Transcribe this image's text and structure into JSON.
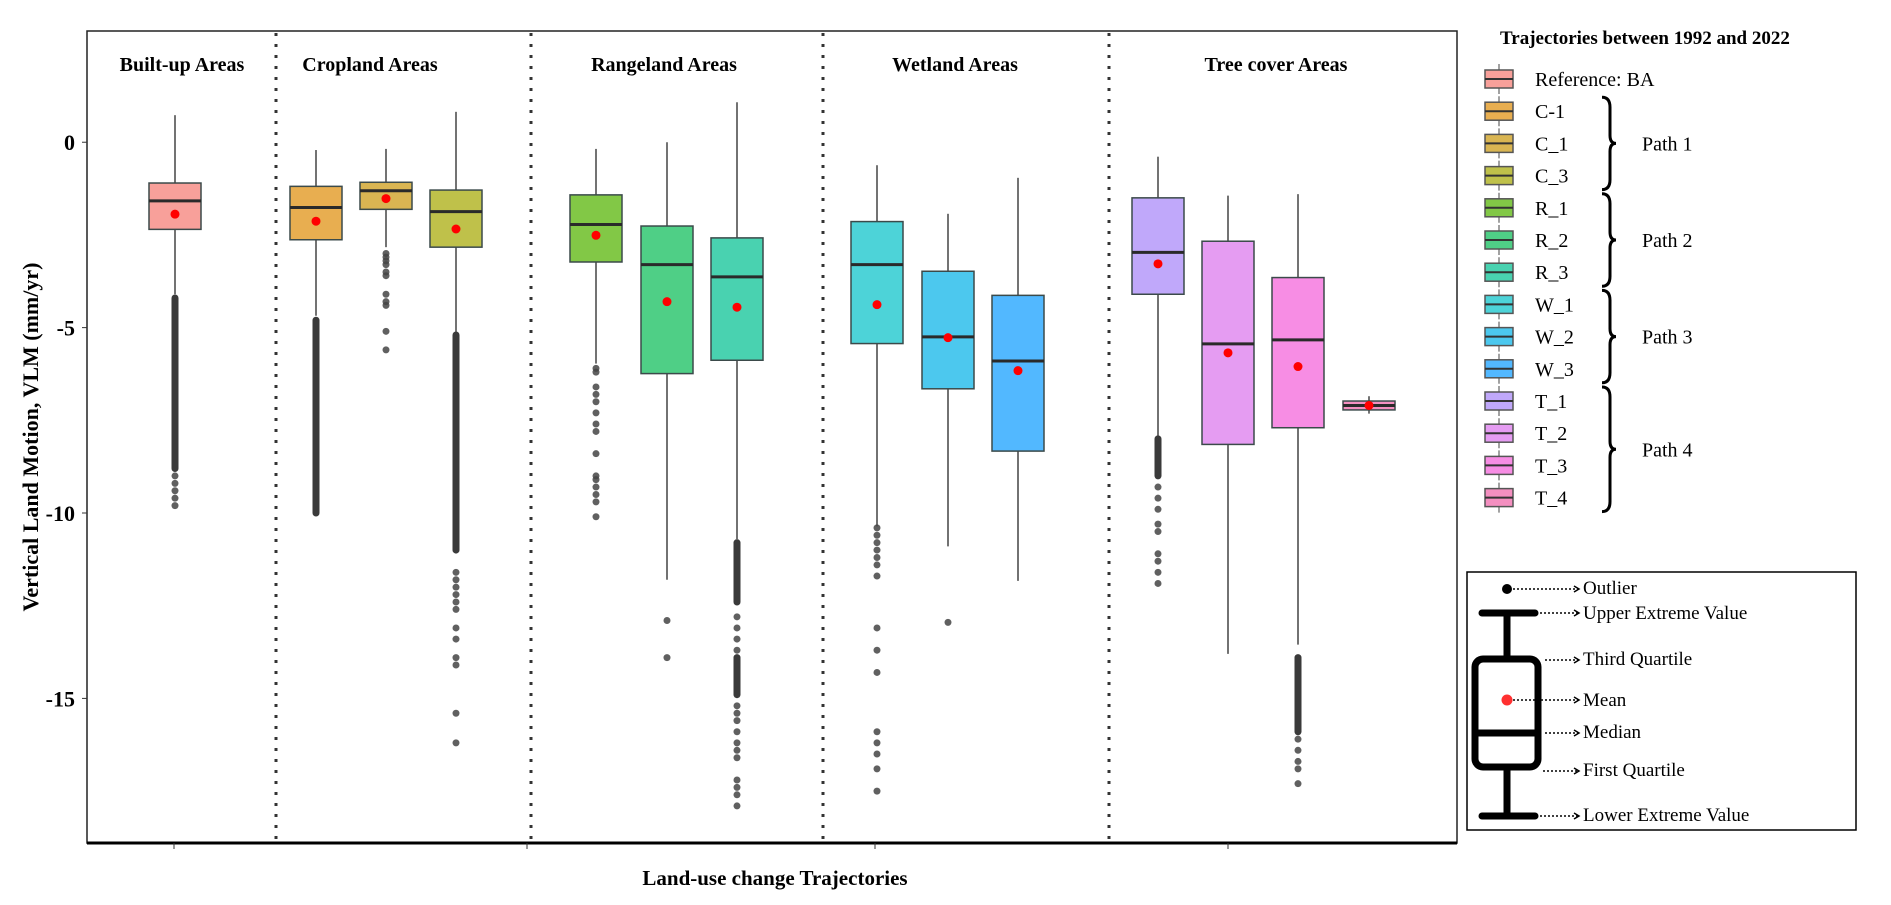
{
  "chart_data": {
    "type": "box",
    "xlabel": "Land-use change Trajectories",
    "ylabel": "Vertical Land Motion, VLM (mm/yr)",
    "ylim": [
      -18.9,
      3.0
    ],
    "yticks": [
      0,
      -5,
      -10,
      -15
    ],
    "grid": false,
    "mean_color": "#ff0000",
    "outlier_color": "#444444",
    "panels": [
      {
        "title": "Built-up Areas",
        "series": [
          "BA"
        ]
      },
      {
        "title": "Cropland  Areas",
        "series": [
          "C-1",
          "C_1",
          "C_3"
        ]
      },
      {
        "title": "Rangeland  Areas",
        "series": [
          "R_1",
          "R_2",
          "R_3"
        ]
      },
      {
        "title": "Wetland  Areas",
        "series": [
          "W_1",
          "W_2",
          "W_3"
        ]
      },
      {
        "title": "Tree cover  Areas",
        "series": [
          "T_1",
          "T_2",
          "T_3",
          "T_4"
        ]
      }
    ],
    "series": [
      {
        "name": "BA",
        "color": "#F8A09A",
        "whisker_high": 0.73,
        "q3": -1.1,
        "median": -1.58,
        "q1": -2.35,
        "whisker_low": -4.1,
        "mean": -1.94,
        "outlier_ranges": [
          [
            -8.8,
            -4.2
          ]
        ],
        "outliers": [
          -9.0,
          -9.2,
          -9.4,
          -9.6,
          -9.8
        ]
      },
      {
        "name": "C-1",
        "color": "#E8AE50",
        "whisker_high": -0.21,
        "q3": -1.19,
        "median": -1.76,
        "q1": -2.63,
        "whisker_low": -4.68,
        "mean": -2.13,
        "outlier_ranges": [
          [
            -10.0,
            -4.8
          ]
        ],
        "outliers": []
      },
      {
        "name": "C_1",
        "color": "#D9B552",
        "whisker_high": -0.18,
        "q3": -1.08,
        "median": -1.31,
        "q1": -1.81,
        "whisker_low": -2.83,
        "mean": -1.52,
        "outlier_ranges": [],
        "outliers": [
          -3.0,
          -3.1,
          -3.2,
          -3.3,
          -3.5,
          -3.6,
          -4.1,
          -4.3,
          -4.4,
          -5.1,
          -5.6
        ]
      },
      {
        "name": "C_3",
        "color": "#BFC14A",
        "whisker_high": 0.82,
        "q3": -1.29,
        "median": -1.87,
        "q1": -2.83,
        "whisker_low": -5.13,
        "mean": -2.34,
        "outlier_ranges": [
          [
            -11.0,
            -5.2
          ]
        ],
        "outliers": [
          -11.6,
          -11.8,
          -12.0,
          -12.2,
          -12.4,
          -12.6,
          -13.1,
          -13.4,
          -13.9,
          -14.1,
          -15.4,
          -16.2
        ]
      },
      {
        "name": "R_1",
        "color": "#82C846",
        "whisker_high": -0.18,
        "q3": -1.42,
        "median": -2.22,
        "q1": -3.23,
        "whisker_low": -5.97,
        "mean": -2.51,
        "outlier_ranges": [],
        "outliers": [
          -6.1,
          -6.2,
          -6.6,
          -6.8,
          -7.0,
          -7.3,
          -7.6,
          -7.8,
          -8.4,
          -9.0,
          -9.1,
          -9.3,
          -9.5,
          -9.7,
          -10.1
        ]
      },
      {
        "name": "R_2",
        "color": "#4FCF86",
        "whisker_high": 0.0,
        "q3": -2.26,
        "median": -3.3,
        "q1": -6.24,
        "whisker_low": -11.8,
        "mean": -4.3,
        "outlier_ranges": [],
        "outliers": [
          -12.9,
          -13.9
        ]
      },
      {
        "name": "R_3",
        "color": "#49D2B0",
        "whisker_high": 1.08,
        "q3": -2.58,
        "median": -3.63,
        "q1": -5.88,
        "whisker_low": -10.7,
        "mean": -4.45,
        "outlier_ranges": [
          [
            -12.4,
            -10.8
          ],
          [
            -14.9,
            -13.9
          ]
        ],
        "outliers": [
          -12.8,
          -13.1,
          -13.4,
          -13.7,
          -15.2,
          -15.4,
          -15.6,
          -15.9,
          -16.2,
          -16.4,
          -16.6,
          -17.2,
          -17.4,
          -17.6,
          -17.9
        ]
      },
      {
        "name": "W_1",
        "color": "#4DD3D8",
        "whisker_high": -0.62,
        "q3": -2.14,
        "median": -3.3,
        "q1": -5.43,
        "whisker_low": -10.36,
        "mean": -4.38,
        "outlier_ranges": [],
        "outliers": [
          -10.4,
          -10.6,
          -10.8,
          -11.0,
          -11.2,
          -11.4,
          -11.7,
          -13.1,
          -13.7,
          -14.3,
          -15.9,
          -16.2,
          -16.5,
          -16.9,
          -17.5
        ]
      },
      {
        "name": "W_2",
        "color": "#4CC8EE",
        "whisker_high": -1.93,
        "q3": -3.48,
        "median": -5.25,
        "q1": -6.65,
        "whisker_low": -10.9,
        "mean": -5.27,
        "outlier_ranges": [],
        "outliers": [
          -12.95
        ]
      },
      {
        "name": "W_3",
        "color": "#52B8FF",
        "whisker_high": -0.96,
        "q3": -4.13,
        "median": -5.9,
        "q1": -8.33,
        "whisker_low": -11.83,
        "mean": -6.16,
        "outlier_ranges": [],
        "outliers": []
      },
      {
        "name": "T_1",
        "color": "#C0A8FA",
        "whisker_high": -0.39,
        "q3": -1.5,
        "median": -2.97,
        "q1": -4.1,
        "whisker_low": -7.96,
        "mean": -3.28,
        "outlier_ranges": [
          [
            -9.0,
            -8.0
          ]
        ],
        "outliers": [
          -9.3,
          -9.6,
          -9.9,
          -10.3,
          -10.5,
          -11.1,
          -11.3,
          -11.6,
          -11.9
        ]
      },
      {
        "name": "T_2",
        "color": "#E59CF2",
        "whisker_high": -1.44,
        "q3": -2.67,
        "median": -5.44,
        "q1": -8.15,
        "whisker_low": -13.8,
        "mean": -5.68,
        "outlier_ranges": [],
        "outliers": []
      },
      {
        "name": "T_3",
        "color": "#F78DE4",
        "whisker_high": -1.4,
        "q3": -3.65,
        "median": -5.33,
        "q1": -7.7,
        "whisker_low": -13.55,
        "mean": -6.05,
        "outlier_ranges": [
          [
            -15.9,
            -13.9
          ]
        ],
        "outliers": [
          -16.1,
          -16.4,
          -16.7,
          -16.9,
          -17.3
        ]
      },
      {
        "name": "T_4",
        "color": "#F48FC0",
        "whisker_high": -6.85,
        "q3": -6.98,
        "median": -7.1,
        "q1": -7.22,
        "whisker_low": -7.32,
        "mean": -7.1,
        "outlier_ranges": [],
        "outliers": []
      }
    ]
  },
  "legend": {
    "title": "Trajectories between 1992 and 2022",
    "items": [
      {
        "label": "Reference: BA",
        "color": "#F8A09A"
      },
      {
        "label": "C-1",
        "color": "#E8AE50"
      },
      {
        "label": "C_1",
        "color": "#D9B552"
      },
      {
        "label": "C_3",
        "color": "#BFC14A"
      },
      {
        "label": "R_1",
        "color": "#82C846"
      },
      {
        "label": "R_2",
        "color": "#4FCF86"
      },
      {
        "label": "R_3",
        "color": "#49D2B0"
      },
      {
        "label": "W_1",
        "color": "#4DD3D8"
      },
      {
        "label": "W_2",
        "color": "#4CC8EE"
      },
      {
        "label": "W_3",
        "color": "#52B8FF"
      },
      {
        "label": "T_1",
        "color": "#C0A8FA"
      },
      {
        "label": "T_2",
        "color": "#E59CF2"
      },
      {
        "label": "T_3",
        "color": "#F78DE4"
      },
      {
        "label": "T_4",
        "color": "#F48FC0"
      }
    ],
    "groups": [
      {
        "label": "Path 1"
      },
      {
        "label": "Path 2"
      },
      {
        "label": "Path 3"
      },
      {
        "label": "Path 4"
      }
    ]
  },
  "key": {
    "outlier": "Outlier",
    "upper": "Upper Extreme Value",
    "q3": "Third Quartile",
    "mean": "Mean",
    "median": "Median",
    "q1": "First Quartile",
    "lower": "Lower Extreme Value"
  }
}
